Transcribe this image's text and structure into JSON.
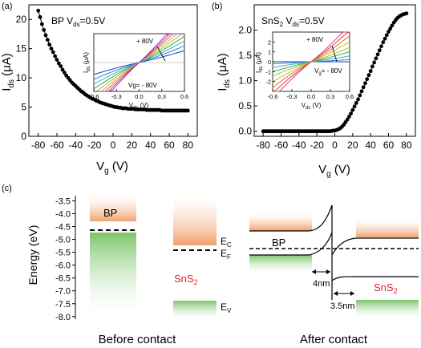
{
  "panel_labels": {
    "a": "(a)",
    "b": "(b)",
    "c": "(c)"
  },
  "chart_data": [
    {
      "type": "scatter",
      "panel": "(a)",
      "xlabel": "V",
      "xlabel_sub": "g",
      "xlabel_unit": " (V)",
      "ylabel": "I",
      "ylabel_sub": "ds",
      "ylabel_unit": " (μA)",
      "annotation": "BP  V",
      "annotation_sub": "ds",
      "annotation_tail": "=0.5V",
      "xlim": [
        -90,
        90
      ],
      "ylim": [
        0,
        22.5
      ],
      "xticks": [
        -80,
        -60,
        -40,
        -20,
        0,
        20,
        40,
        60,
        80
      ],
      "yticks": [
        0,
        5,
        10,
        15,
        20
      ],
      "x": [
        -80,
        -78,
        -76,
        -74,
        -72,
        -70,
        -68,
        -66,
        -64,
        -62,
        -60,
        -58,
        -56,
        -54,
        -52,
        -50,
        -48,
        -46,
        -44,
        -42,
        -40,
        -38,
        -36,
        -34,
        -32,
        -30,
        -28,
        -26,
        -24,
        -22,
        -20,
        -18,
        -16,
        -14,
        -12,
        -10,
        -8,
        -6,
        -4,
        -2,
        0,
        2,
        4,
        6,
        8,
        10,
        12,
        14,
        16,
        18,
        20,
        22,
        24,
        26,
        28,
        30,
        32,
        34,
        36,
        38,
        40,
        42,
        44,
        46,
        48,
        50,
        52,
        54,
        56,
        58,
        60,
        62,
        64,
        66,
        68,
        70,
        72,
        74,
        76,
        78,
        80
      ],
      "y": [
        21.5,
        20.4,
        19.2,
        18.2,
        17.3,
        16.5,
        15.7,
        15.0,
        14.4,
        13.7,
        13.1,
        12.5,
        12.0,
        11.4,
        10.9,
        10.4,
        10.0,
        9.6,
        9.2,
        8.9,
        8.6,
        8.3,
        8.0,
        7.7,
        7.5,
        7.2,
        7.0,
        6.8,
        6.6,
        6.4,
        6.3,
        6.1,
        6.0,
        5.8,
        5.7,
        5.6,
        5.5,
        5.4,
        5.3,
        5.2,
        5.1,
        5.0,
        5.0,
        4.9,
        4.9,
        4.8,
        4.8,
        4.8,
        4.7,
        4.7,
        4.7,
        4.7,
        4.6,
        4.6,
        4.6,
        4.6,
        4.6,
        4.6,
        4.5,
        4.5,
        4.5,
        4.5,
        4.5,
        4.5,
        4.5,
        4.5,
        4.4,
        4.4,
        4.4,
        4.4,
        4.4,
        4.4,
        4.4,
        4.4,
        4.4,
        4.4,
        4.4,
        4.4,
        4.4,
        4.4,
        4.4
      ],
      "inset": {
        "type": "line",
        "xlabel": "V",
        "xlabel_sub": "ds",
        "xlabel_unit": " (V)",
        "ylabel": "I",
        "ylabel_sub": "ds",
        "ylabel_unit": " (μA)",
        "xlim": [
          -0.6,
          0.6
        ],
        "ylim": [
          -3.5,
          3.5
        ],
        "xticks": [
          -0.6,
          -0.3,
          0.0,
          0.3,
          0.6
        ],
        "annotation_top": "+ 80V",
        "annotation_bottom": "Vg= - 80V",
        "series_slopes": [
          2.0,
          2.8,
          3.6,
          4.4,
          5.2,
          6.0,
          6.8,
          7.6,
          8.4
        ],
        "series_colors": [
          "#1a3fbf",
          "#2e7fd6",
          "#3bb3c9",
          "#3aa84a",
          "#9cc23a",
          "#d9b22a",
          "#e26a2a",
          "#d23a8a",
          "#a020f0"
        ]
      }
    },
    {
      "type": "scatter",
      "panel": "(b)",
      "xlabel": "V",
      "xlabel_sub": "g",
      "xlabel_unit": " (V)",
      "ylabel": "I",
      "ylabel_sub": "ds",
      "ylabel_unit": " (μA)",
      "annotation": "SnS",
      "annotation_sub": "2",
      "annotation_mid": "  V",
      "annotation_sub2": "ds",
      "annotation_tail": "=0.5V",
      "xlim": [
        -90,
        90
      ],
      "ylim": [
        -0.1,
        2.5
      ],
      "xticks": [
        -80,
        -60,
        -40,
        -20,
        0,
        20,
        40,
        60,
        80
      ],
      "yticks": [
        0.0,
        0.5,
        1.0,
        1.5,
        2.0
      ],
      "x": [
        -80,
        -78,
        -76,
        -74,
        -72,
        -70,
        -68,
        -66,
        -64,
        -62,
        -60,
        -58,
        -56,
        -54,
        -52,
        -50,
        -48,
        -46,
        -44,
        -42,
        -40,
        -38,
        -36,
        -34,
        -32,
        -30,
        -28,
        -26,
        -24,
        -22,
        -20,
        -18,
        -16,
        -14,
        -12,
        -10,
        -8,
        -6,
        -4,
        -2,
        0,
        2,
        4,
        6,
        8,
        10,
        12,
        14,
        16,
        18,
        20,
        22,
        24,
        26,
        28,
        30,
        32,
        34,
        36,
        38,
        40,
        42,
        44,
        46,
        48,
        50,
        52,
        54,
        56,
        58,
        60,
        62,
        64,
        66,
        68,
        70,
        72,
        74,
        76,
        78,
        80
      ],
      "y": [
        0,
        0,
        0,
        0,
        0,
        0,
        0,
        0,
        0,
        0,
        0,
        0,
        0,
        0,
        0,
        0,
        0,
        0,
        0,
        0,
        0,
        0,
        0,
        0,
        0,
        0,
        0,
        0,
        0,
        0,
        0,
        0,
        0,
        0,
        0,
        0,
        0,
        0,
        0.005,
        0.01,
        0.015,
        0.025,
        0.04,
        0.06,
        0.09,
        0.13,
        0.18,
        0.23,
        0.29,
        0.35,
        0.42,
        0.49,
        0.56,
        0.63,
        0.71,
        0.79,
        0.87,
        0.95,
        1.03,
        1.11,
        1.19,
        1.28,
        1.36,
        1.44,
        1.52,
        1.6,
        1.68,
        1.76,
        1.83,
        1.9,
        1.97,
        2.03,
        2.09,
        2.15,
        2.2,
        2.24,
        2.27,
        2.29,
        2.31,
        2.32,
        2.33
      ],
      "inset": {
        "type": "line",
        "xlabel": "V",
        "xlabel_sub": "ds",
        "xlabel_unit": " (V)",
        "ylabel": "I",
        "ylabel_sub": "ds",
        "ylabel_unit": " (μA)",
        "xlim": [
          -0.6,
          0.6
        ],
        "ylim": [
          -3,
          3
        ],
        "xticks": [
          -0.6,
          -0.3,
          0.0,
          0.3,
          0.6
        ],
        "yticks": [
          -2,
          -1,
          0,
          1,
          2
        ],
        "annotation_top": "+ 80V",
        "annotation_bottom": "V",
        "annotation_bottom_sub": "g",
        "annotation_bottom_tail": "= - 80V",
        "series_slopes": [
          0.0,
          0.3,
          0.8,
          1.4,
          2.0,
          2.8,
          3.6,
          4.4,
          5.2
        ],
        "series_colors": [
          "#1a3fbf",
          "#2e7fd6",
          "#3bb3c9",
          "#3aa84a",
          "#9cc23a",
          "#d9b22a",
          "#e26a2a",
          "#e23a3a",
          "#d23a8a"
        ]
      }
    },
    {
      "type": "band-diagram",
      "panel": "(c)",
      "ylabel": "Energy (eV)",
      "ylim": [
        -8.1,
        -3.3
      ],
      "yticks": [
        -3.5,
        -4.0,
        -4.5,
        -5.0,
        -5.5,
        -6.0,
        -6.5,
        -7.0,
        -7.5,
        -8.0
      ],
      "bp_label": "BP",
      "sns2_label": "SnS",
      "sns2_label_sub": "2",
      "ec_label": "E",
      "ec_sub": "C",
      "ef_label": "E",
      "ef_sub": "F",
      "ev_label": "E",
      "ev_sub": "V",
      "bp_cb": -4.1,
      "bp_vb": -4.6,
      "bp_fermi": -4.5,
      "sns2_cb": -5.2,
      "sns2_fermi": -5.35,
      "sns2_vb": -7.4,
      "before_caption": "Before contact",
      "after_caption": "After contact",
      "after_bp_label": "BP",
      "after_sns2_label": "SnS",
      "after_sns2_label_sub": "2",
      "width_bp": "4nm",
      "width_sns2": "3.5nm",
      "colors": {
        "conduction": "#f0a06a",
        "valence": "#7cc46a",
        "sns2_text": "#e0202a"
      }
    }
  ]
}
